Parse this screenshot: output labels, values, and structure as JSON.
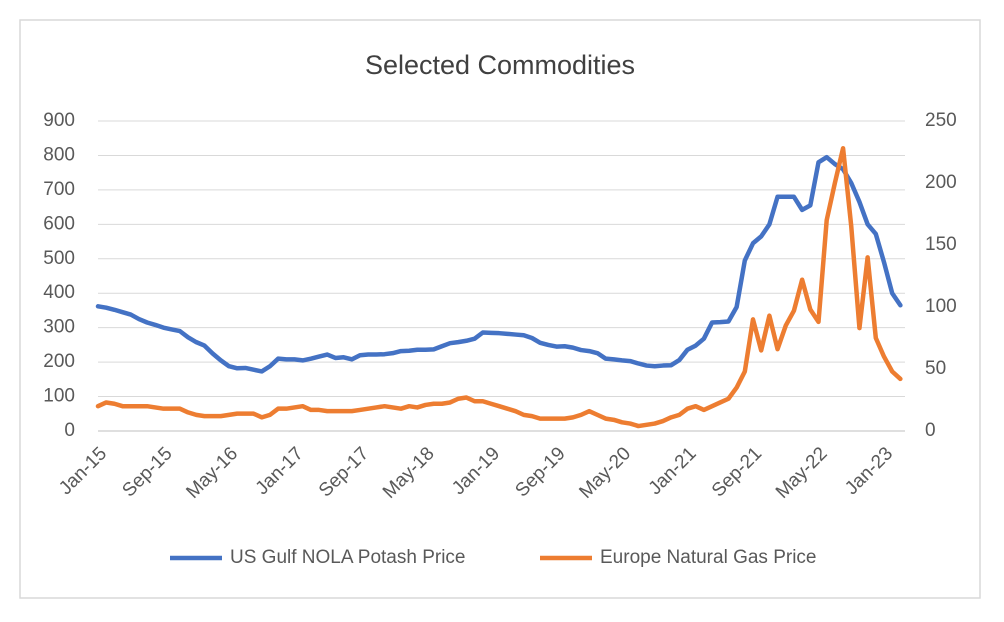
{
  "chart_data": {
    "type": "line",
    "title": "Selected Commodities",
    "categories": [
      "Jan-15",
      null,
      null,
      null,
      null,
      null,
      null,
      null,
      "Sep-15",
      null,
      null,
      null,
      null,
      null,
      null,
      null,
      "May-16",
      null,
      null,
      null,
      null,
      null,
      null,
      null,
      "Jan-17",
      null,
      null,
      null,
      null,
      null,
      null,
      null,
      "Sep-17",
      null,
      null,
      null,
      null,
      null,
      null,
      null,
      "May-18",
      null,
      null,
      null,
      null,
      null,
      null,
      null,
      "Jan-19",
      null,
      null,
      null,
      null,
      null,
      null,
      null,
      "Sep-19",
      null,
      null,
      null,
      null,
      null,
      null,
      null,
      "May-20",
      null,
      null,
      null,
      null,
      null,
      null,
      null,
      "Jan-21",
      null,
      null,
      null,
      null,
      null,
      null,
      null,
      "Sep-21",
      null,
      null,
      null,
      null,
      null,
      null,
      null,
      "May-22",
      null,
      null,
      null,
      null,
      null,
      null,
      null,
      "Jan-23",
      null,
      null
    ],
    "series": [
      {
        "name": "US Gulf NOLA Potash Price",
        "color": "#4472c4",
        "axis": "y",
        "values": [
          362,
          358,
          352,
          345,
          338,
          325,
          315,
          308,
          300,
          295,
          290,
          272,
          258,
          248,
          225,
          205,
          188,
          182,
          183,
          178,
          173,
          188,
          210,
          208,
          208,
          205,
          210,
          216,
          222,
          212,
          214,
          208,
          220,
          222,
          222,
          223,
          226,
          232,
          233,
          236,
          236,
          237,
          246,
          255,
          258,
          262,
          268,
          286,
          285,
          284,
          282,
          280,
          278,
          270,
          256,
          250,
          245,
          246,
          242,
          235,
          232,
          226,
          210,
          208,
          205,
          203,
          196,
          190,
          188,
          190,
          191,
          206,
          236,
          248,
          268,
          315,
          316,
          318,
          360,
          495,
          545,
          565,
          600,
          680,
          680,
          680,
          642,
          655,
          780,
          795,
          775,
          760,
          720,
          665,
          600,
          572,
          490,
          400,
          365
        ]
      },
      {
        "name": "Europe Natural Gas Price",
        "color": "#ed7d31",
        "axis": "y2",
        "values": [
          20,
          23,
          22,
          20,
          20,
          20,
          20,
          19,
          18,
          18,
          18,
          15,
          13,
          12,
          12,
          12,
          13,
          14,
          14,
          14,
          11,
          13,
          18,
          18,
          19,
          20,
          17,
          17,
          16,
          16,
          16,
          16,
          17,
          18,
          19,
          20,
          19,
          18,
          20,
          19,
          21,
          22,
          22,
          23,
          26,
          27,
          24,
          24,
          22,
          20,
          18,
          16,
          13,
          12,
          10,
          10,
          10,
          10,
          11,
          13,
          16,
          13,
          10,
          9,
          7,
          6,
          4,
          5,
          6,
          8,
          11,
          13,
          18,
          20,
          17,
          20,
          23,
          26,
          35,
          48,
          90,
          65,
          93,
          66,
          85,
          97,
          122,
          98,
          88,
          170,
          200,
          228,
          165,
          83,
          140,
          75,
          60,
          48,
          42
        ]
      }
    ],
    "ylim": [
      0,
      900
    ],
    "yticks": [
      0,
      100,
      200,
      300,
      400,
      500,
      600,
      700,
      800,
      900
    ],
    "y2lim": [
      0,
      250
    ],
    "y2ticks": [
      0,
      50,
      100,
      150,
      200,
      250
    ],
    "grid": true,
    "legend": "bottom"
  }
}
